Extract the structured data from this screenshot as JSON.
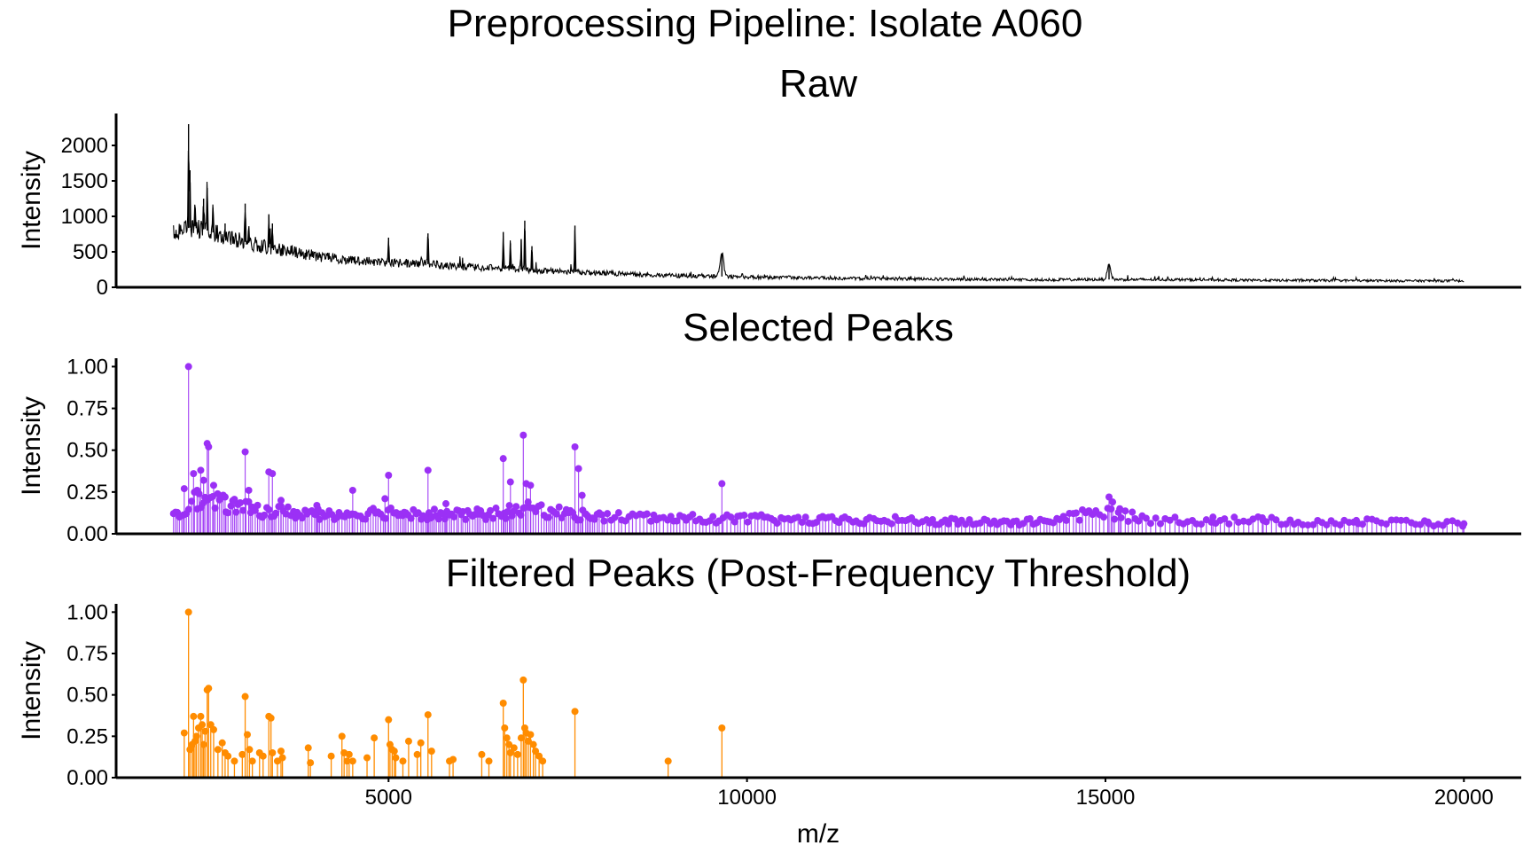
{
  "figure": {
    "title": "Preprocessing Pipeline: Isolate A060",
    "xlabel": "m/z"
  },
  "colors": {
    "raw": "#000000",
    "selected": "#9B30F5",
    "filtered": "#FF8C00",
    "axis": "#000000",
    "background": "#ffffff"
  },
  "chart_data": [
    {
      "type": "line",
      "panel": "raw",
      "title": "Raw",
      "xlabel": "m/z",
      "ylabel": "Intensity",
      "xlim": [
        1200,
        20800
      ],
      "ylim": [
        0,
        2450
      ],
      "x_ticks": [
        5000,
        10000,
        15000,
        20000
      ],
      "y_ticks": [
        0,
        500,
        1000,
        1500,
        2000
      ],
      "grid": false,
      "legend": "none",
      "series": [
        {
          "baseline": [
            [
              2000,
              780
            ],
            [
              2300,
              860
            ],
            [
              2700,
              720
            ],
            [
              3000,
              640
            ],
            [
              3500,
              520
            ],
            [
              4000,
              440
            ],
            [
              4500,
              380
            ],
            [
              5000,
              350
            ],
            [
              5500,
              330
            ],
            [
              6000,
              290
            ],
            [
              6500,
              270
            ],
            [
              7000,
              240
            ],
            [
              7500,
              220
            ],
            [
              8000,
              200
            ],
            [
              8500,
              180
            ],
            [
              9000,
              165
            ],
            [
              9500,
              155
            ],
            [
              10000,
              145
            ],
            [
              11000,
              130
            ],
            [
              12000,
              120
            ],
            [
              13000,
              112
            ],
            [
              14000,
              106
            ],
            [
              15000,
              110
            ],
            [
              16000,
              108
            ],
            [
              17000,
              100
            ],
            [
              18000,
              96
            ],
            [
              19000,
              92
            ],
            [
              20000,
              90
            ]
          ],
          "peaks": [
            {
              "x": 2210,
              "y": 2300
            },
            {
              "x": 2230,
              "y": 1650
            },
            {
              "x": 2300,
              "y": 1100
            },
            {
              "x": 2420,
              "y": 1250
            },
            {
              "x": 2470,
              "y": 1400
            },
            {
              "x": 2550,
              "y": 1120
            },
            {
              "x": 2720,
              "y": 900
            },
            {
              "x": 3000,
              "y": 1180
            },
            {
              "x": 3050,
              "y": 800
            },
            {
              "x": 3330,
              "y": 1030
            },
            {
              "x": 3380,
              "y": 900
            },
            {
              "x": 5000,
              "y": 700
            },
            {
              "x": 5550,
              "y": 760
            },
            {
              "x": 6600,
              "y": 780
            },
            {
              "x": 6700,
              "y": 620
            },
            {
              "x": 6850,
              "y": 680
            },
            {
              "x": 6900,
              "y": 940
            },
            {
              "x": 7000,
              "y": 580
            },
            {
              "x": 7600,
              "y": 870
            },
            {
              "x": 9650,
              "y": 480
            },
            {
              "x": 15050,
              "y": 320
            }
          ]
        }
      ]
    },
    {
      "type": "scatter",
      "panel": "selected",
      "title": "Selected Peaks",
      "xlabel": "m/z",
      "ylabel": "Intensity",
      "xlim": [
        1200,
        20800
      ],
      "ylim": [
        0,
        1.05
      ],
      "x_ticks": [
        5000,
        10000,
        15000,
        20000
      ],
      "y_ticks": [
        0.0,
        0.25,
        0.5,
        0.75,
        1.0
      ],
      "y_tick_labels": [
        "0.00",
        "0.25",
        "0.50",
        "0.75",
        "1.00"
      ],
      "grid": false,
      "legend": "none",
      "stems": true,
      "series": [
        {
          "peaks": [
            [
              2210,
              1.0
            ],
            [
              2150,
              0.27
            ],
            [
              2280,
              0.36
            ],
            [
              2330,
              0.26
            ],
            [
              2380,
              0.38
            ],
            [
              2420,
              0.32
            ],
            [
              2470,
              0.54
            ],
            [
              2490,
              0.52
            ],
            [
              2560,
              0.29
            ],
            [
              2720,
              0.22
            ],
            [
              3000,
              0.49
            ],
            [
              3050,
              0.26
            ],
            [
              3330,
              0.37
            ],
            [
              3380,
              0.36
            ],
            [
              3500,
              0.2
            ],
            [
              4000,
              0.17
            ],
            [
              4500,
              0.26
            ],
            [
              4950,
              0.21
            ],
            [
              5000,
              0.35
            ],
            [
              5550,
              0.38
            ],
            [
              5800,
              0.18
            ],
            [
              6600,
              0.45
            ],
            [
              6700,
              0.31
            ],
            [
              6880,
              0.59
            ],
            [
              6920,
              0.3
            ],
            [
              6980,
              0.29
            ],
            [
              7600,
              0.52
            ],
            [
              7650,
              0.39
            ],
            [
              7700,
              0.23
            ],
            [
              9650,
              0.3
            ],
            [
              15050,
              0.22
            ],
            [
              15100,
              0.19
            ],
            [
              15200,
              0.15
            ],
            [
              16500,
              0.1
            ],
            [
              17200,
              0.08
            ],
            [
              18500,
              0.08
            ],
            [
              19500,
              0.07
            ],
            [
              20000,
              0.06
            ]
          ],
          "baseline": [
            [
              2000,
              0.12
            ],
            [
              2300,
              0.2
            ],
            [
              2700,
              0.18
            ],
            [
              3000,
              0.15
            ],
            [
              3500,
              0.13
            ],
            [
              4000,
              0.12
            ],
            [
              4500,
              0.12
            ],
            [
              5000,
              0.13
            ],
            [
              5500,
              0.12
            ],
            [
              6000,
              0.11
            ],
            [
              6500,
              0.12
            ],
            [
              7000,
              0.15
            ],
            [
              7500,
              0.12
            ],
            [
              8000,
              0.1
            ],
            [
              8500,
              0.1
            ],
            [
              9000,
              0.09
            ],
            [
              9500,
              0.09
            ],
            [
              10000,
              0.09
            ],
            [
              11000,
              0.08
            ],
            [
              12000,
              0.08
            ],
            [
              13000,
              0.07
            ],
            [
              14000,
              0.07
            ],
            [
              15000,
              0.13
            ],
            [
              15500,
              0.09
            ],
            [
              16000,
              0.08
            ],
            [
              17000,
              0.08
            ],
            [
              18000,
              0.07
            ],
            [
              19000,
              0.07
            ],
            [
              20000,
              0.06
            ]
          ]
        }
      ]
    },
    {
      "type": "scatter",
      "panel": "filtered",
      "title": "Filtered Peaks (Post-Frequency Threshold)",
      "xlabel": "m/z",
      "ylabel": "Intensity",
      "xlim": [
        1200,
        20800
      ],
      "ylim": [
        0,
        1.05
      ],
      "x_ticks": [
        5000,
        10000,
        15000,
        20000
      ],
      "y_ticks": [
        0.0,
        0.25,
        0.5,
        0.75,
        1.0
      ],
      "y_tick_labels": [
        "0.00",
        "0.25",
        "0.50",
        "0.75",
        "1.00"
      ],
      "grid": false,
      "legend": "none",
      "stems": true,
      "series": [
        {
          "points": [
            [
              2150,
              0.27
            ],
            [
              2210,
              1.0
            ],
            [
              2230,
              0.17
            ],
            [
              2260,
              0.2
            ],
            [
              2280,
              0.37
            ],
            [
              2300,
              0.22
            ],
            [
              2320,
              0.25
            ],
            [
              2350,
              0.3
            ],
            [
              2380,
              0.37
            ],
            [
              2400,
              0.32
            ],
            [
              2420,
              0.2
            ],
            [
              2440,
              0.28
            ],
            [
              2470,
              0.53
            ],
            [
              2490,
              0.54
            ],
            [
              2520,
              0.32
            ],
            [
              2560,
              0.29
            ],
            [
              2620,
              0.17
            ],
            [
              2680,
              0.21
            ],
            [
              2720,
              0.15
            ],
            [
              2760,
              0.13
            ],
            [
              2850,
              0.1
            ],
            [
              2960,
              0.14
            ],
            [
              3000,
              0.49
            ],
            [
              3030,
              0.26
            ],
            [
              3060,
              0.17
            ],
            [
              3100,
              0.1
            ],
            [
              3200,
              0.15
            ],
            [
              3250,
              0.13
            ],
            [
              3330,
              0.37
            ],
            [
              3360,
              0.36
            ],
            [
              3380,
              0.15
            ],
            [
              3450,
              0.1
            ],
            [
              3500,
              0.16
            ],
            [
              3520,
              0.12
            ],
            [
              3880,
              0.18
            ],
            [
              3910,
              0.09
            ],
            [
              4200,
              0.13
            ],
            [
              4350,
              0.25
            ],
            [
              4380,
              0.15
            ],
            [
              4420,
              0.1
            ],
            [
              4450,
              0.14
            ],
            [
              4500,
              0.1
            ],
            [
              4700,
              0.12
            ],
            [
              4800,
              0.24
            ],
            [
              5000,
              0.35
            ],
            [
              5020,
              0.2
            ],
            [
              5050,
              0.17
            ],
            [
              5080,
              0.16
            ],
            [
              5100,
              0.12
            ],
            [
              5200,
              0.1
            ],
            [
              5280,
              0.22
            ],
            [
              5400,
              0.14
            ],
            [
              5450,
              0.21
            ],
            [
              5550,
              0.38
            ],
            [
              5600,
              0.16
            ],
            [
              5850,
              0.1
            ],
            [
              5900,
              0.11
            ],
            [
              6300,
              0.14
            ],
            [
              6400,
              0.1
            ],
            [
              6600,
              0.45
            ],
            [
              6620,
              0.3
            ],
            [
              6650,
              0.24
            ],
            [
              6680,
              0.2
            ],
            [
              6700,
              0.15
            ],
            [
              6750,
              0.18
            ],
            [
              6800,
              0.14
            ],
            [
              6850,
              0.24
            ],
            [
              6880,
              0.59
            ],
            [
              6900,
              0.3
            ],
            [
              6920,
              0.27
            ],
            [
              6950,
              0.22
            ],
            [
              6980,
              0.26
            ],
            [
              7020,
              0.2
            ],
            [
              7050,
              0.16
            ],
            [
              7100,
              0.13
            ],
            [
              7150,
              0.1
            ],
            [
              7600,
              0.4
            ],
            [
              8900,
              0.1
            ],
            [
              9650,
              0.3
            ]
          ]
        }
      ]
    }
  ]
}
